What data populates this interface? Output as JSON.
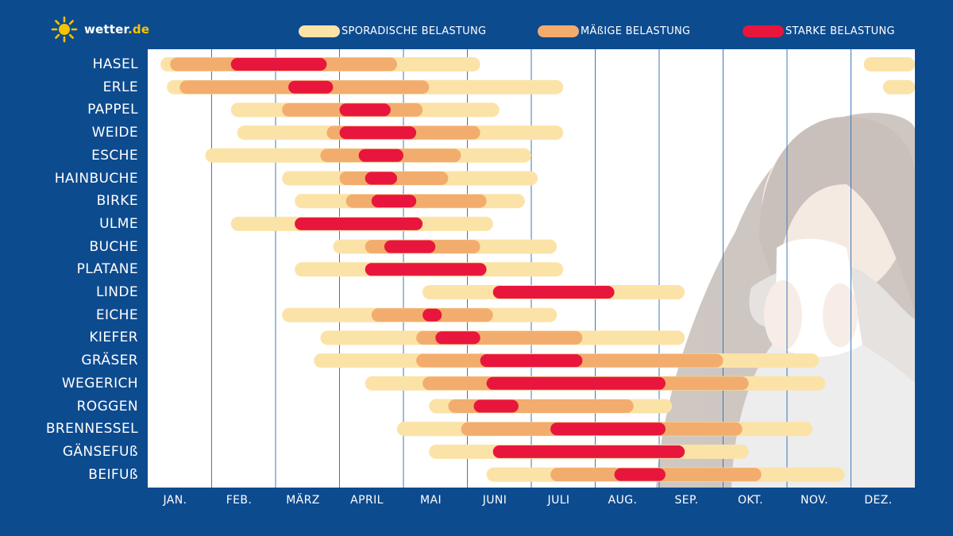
{
  "brand": {
    "name": "wetter",
    "tld": ".de",
    "icon": "sun-icon"
  },
  "colors": {
    "background": "#0d4b8f",
    "sporadisch": "#fbe3a8",
    "maessig": "#f2ad6e",
    "stark": "#e8163c",
    "grid": "#3c78b8",
    "plot": "#ffffff"
  },
  "legend": [
    {
      "key": "sporadisch",
      "label": "SPORADISCHE BELASTUNG"
    },
    {
      "key": "maessig",
      "label": "MÄßIGE BELASTUNG"
    },
    {
      "key": "stark",
      "label": "STARKE BELASTUNG"
    }
  ],
  "chart_data": {
    "type": "bar",
    "orientation": "horizontal-range",
    "title": "",
    "months": [
      "JAN.",
      "FEB.",
      "MÄRZ",
      "APRIL",
      "MAI",
      "JUNI",
      "JULI",
      "AUG.",
      "SEP.",
      "OKT.",
      "NOV.",
      "DEZ."
    ],
    "x_unit": "months (0 = start of January, 12 = end of December)",
    "xlim": [
      0,
      12
    ],
    "grid": true,
    "legend_position": "top",
    "categories": [
      "HASEL",
      "ERLE",
      "PAPPEL",
      "WEIDE",
      "ESCHE",
      "HAINBUCHE",
      "BIRKE",
      "ULME",
      "BUCHE",
      "PLATANE",
      "LINDE",
      "EICHE",
      "KIEFER",
      "GRÄSER",
      "WEGERICH",
      "ROGGEN",
      "BRENNESSEL",
      "GÄNSEFUß",
      "BEIFUß"
    ],
    "series": [
      {
        "name": "SPORADISCHE BELASTUNG",
        "ranges": [
          [
            [
              0.2,
              5.2
            ],
            [
              11.2,
              12.0
            ]
          ],
          [
            [
              0.3,
              6.5
            ],
            [
              11.5,
              12.0
            ]
          ],
          [
            [
              1.3,
              5.5
            ]
          ],
          [
            [
              1.4,
              6.5
            ]
          ],
          [
            [
              0.9,
              6.0
            ]
          ],
          [
            [
              2.1,
              6.1
            ]
          ],
          [
            [
              2.3,
              5.9
            ]
          ],
          [
            [
              1.3,
              5.4
            ]
          ],
          [
            [
              2.9,
              6.4
            ]
          ],
          [
            [
              2.3,
              6.5
            ]
          ],
          [
            [
              4.3,
              8.4
            ]
          ],
          [
            [
              2.1,
              6.4
            ]
          ],
          [
            [
              2.7,
              8.4
            ]
          ],
          [
            [
              2.6,
              10.5
            ]
          ],
          [
            [
              3.4,
              10.6
            ]
          ],
          [
            [
              4.4,
              8.2
            ]
          ],
          [
            [
              3.9,
              10.4
            ]
          ],
          [
            [
              4.4,
              9.4
            ]
          ],
          [
            [
              5.3,
              10.9
            ]
          ]
        ]
      },
      {
        "name": "MÄßIGE BELASTUNG",
        "ranges": [
          [
            [
              0.35,
              3.9
            ]
          ],
          [
            [
              0.5,
              4.4
            ]
          ],
          [
            [
              2.1,
              4.3
            ]
          ],
          [
            [
              2.8,
              5.2
            ]
          ],
          [
            [
              2.7,
              4.9
            ]
          ],
          [
            [
              3.0,
              4.7
            ]
          ],
          [
            [
              3.1,
              5.3
            ]
          ],
          [],
          [
            [
              3.4,
              5.2
            ]
          ],
          [],
          [],
          [
            [
              3.5,
              5.4
            ]
          ],
          [
            [
              4.2,
              6.8
            ]
          ],
          [
            [
              4.2,
              9.0
            ]
          ],
          [
            [
              4.3,
              9.4
            ]
          ],
          [
            [
              4.7,
              7.6
            ]
          ],
          [
            [
              4.9,
              9.3
            ]
          ],
          [],
          [
            [
              6.3,
              9.6
            ]
          ]
        ]
      },
      {
        "name": "STARKE BELASTUNG",
        "ranges": [
          [
            [
              1.3,
              2.8
            ]
          ],
          [
            [
              2.2,
              2.9
            ]
          ],
          [
            [
              3.0,
              3.8
            ]
          ],
          [
            [
              3.0,
              4.2
            ]
          ],
          [
            [
              3.3,
              4.0
            ]
          ],
          [
            [
              3.4,
              3.9
            ]
          ],
          [
            [
              3.5,
              4.2
            ]
          ],
          [
            [
              2.3,
              4.3
            ]
          ],
          [
            [
              3.7,
              4.5
            ]
          ],
          [
            [
              3.4,
              5.3
            ]
          ],
          [
            [
              5.4,
              7.3
            ]
          ],
          [
            [
              4.3,
              4.6
            ]
          ],
          [
            [
              4.5,
              5.2
            ]
          ],
          [
            [
              5.2,
              6.8
            ]
          ],
          [
            [
              5.3,
              8.1
            ]
          ],
          [
            [
              5.1,
              5.8
            ]
          ],
          [
            [
              6.3,
              8.1
            ]
          ],
          [
            [
              5.4,
              8.4
            ]
          ],
          [
            [
              7.3,
              8.1
            ]
          ]
        ]
      }
    ]
  }
}
